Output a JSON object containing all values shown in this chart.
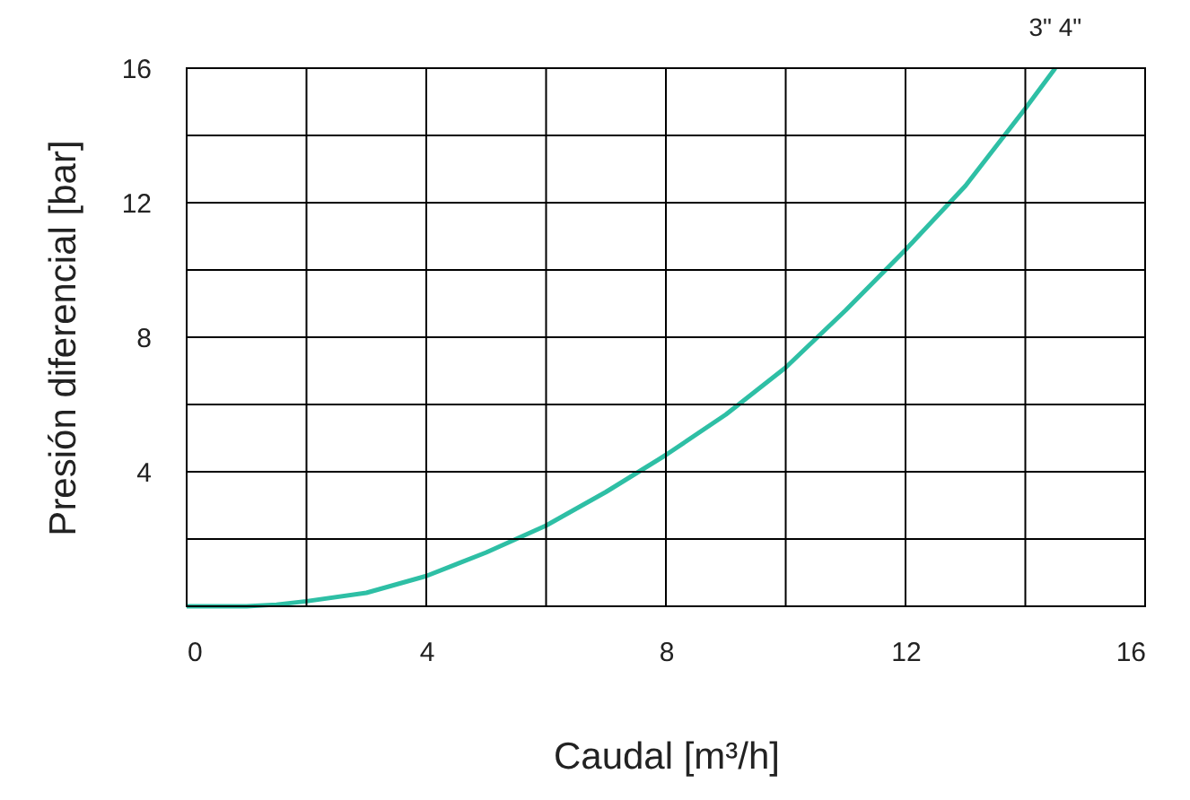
{
  "chart_data": {
    "type": "line",
    "xlabel": "Caudal [m³/h]",
    "ylabel": "Presión diferencial [bar]",
    "x": [
      0,
      0.5,
      1,
      1.5,
      2,
      3,
      4,
      5,
      6,
      7,
      8,
      9,
      10,
      11,
      12,
      13,
      14,
      14.5
    ],
    "series": [
      {
        "color": "#2ebfa5",
        "values": [
          0,
          0,
          0,
          0.05,
          0.15,
          0.4,
          0.9,
          1.6,
          2.4,
          3.4,
          4.5,
          5.7,
          7.1,
          8.8,
          10.6,
          12.5,
          14.8,
          16
        ]
      }
    ],
    "xlim": [
      0,
      16
    ],
    "ylim": [
      0,
      16
    ],
    "xticks": [
      0,
      {
        "value": 2,
        "label": null
      },
      4,
      {
        "value": 6,
        "label": null
      },
      8,
      {
        "value": 10,
        "label": null
      },
      12,
      {
        "value": 14,
        "label": null
      },
      16
    ],
    "yticks": [
      {
        "value": 0,
        "label": null
      },
      {
        "value": 2,
        "label": null
      },
      4,
      {
        "value": 6,
        "label": null
      },
      8,
      {
        "value": 10,
        "label": null
      },
      12,
      {
        "value": 14,
        "label": null
      },
      16
    ],
    "annotations": [
      {
        "text": "3\" 4\"",
        "x": 14.5,
        "y": 16
      }
    ],
    "grid": true,
    "marker": "none",
    "line_style": "solid"
  }
}
